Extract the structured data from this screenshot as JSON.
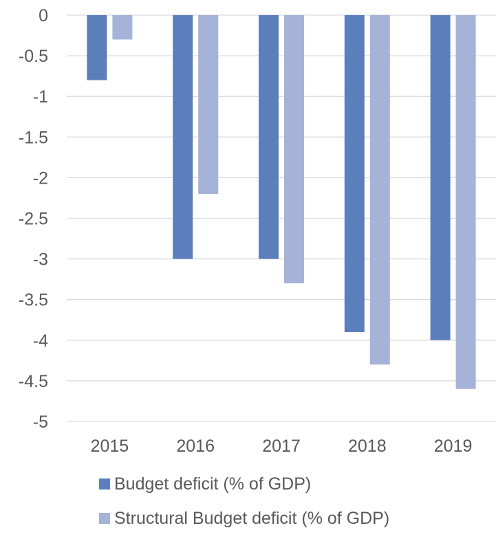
{
  "chart_data": {
    "type": "bar",
    "title": "",
    "xlabel": "",
    "ylabel": "",
    "categories": [
      "2015",
      "2016",
      "2017",
      "2018",
      "2019"
    ],
    "series": [
      {
        "name": "Budget deficit (% of GDP)",
        "values": [
          -0.8,
          -3.0,
          -3.0,
          -3.9,
          -4.0
        ],
        "color": "#5b7ebd"
      },
      {
        "name": "Structural Budget deficit (% of GDP)",
        "values": [
          -0.3,
          -2.2,
          -3.3,
          -4.3,
          -4.6
        ],
        "color": "#a5b3d9"
      }
    ],
    "ylim": [
      -5,
      0
    ],
    "yticks": [
      "0",
      "-0.5",
      "-1",
      "-1.5",
      "-2",
      "-2.5",
      "-3",
      "-3.5",
      "-4",
      "-4.5",
      "-5"
    ],
    "grid": true,
    "legend_position": "bottom"
  }
}
